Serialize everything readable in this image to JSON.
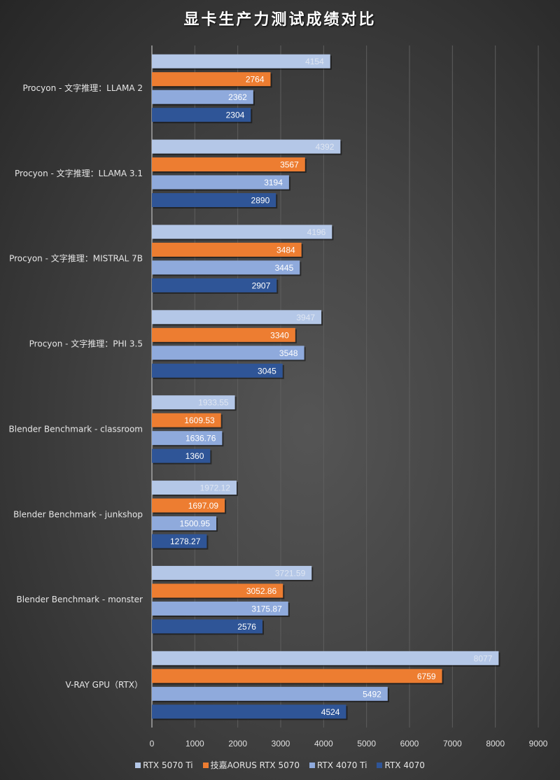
{
  "chart_data": {
    "type": "bar",
    "orientation": "horizontal",
    "title": "显卡生产力测试成绩对比",
    "xlabel": "",
    "ylabel": "",
    "xlim": [
      0,
      9000
    ],
    "x_ticks": [
      "0",
      "1000",
      "2000",
      "3000",
      "4000",
      "5000",
      "6000",
      "7000",
      "8000",
      "9000"
    ],
    "grid": "vertical",
    "legend_position": "bottom",
    "categories": [
      "Procyon - 文字推理：LLAMA 2",
      "Procyon - 文字推理：LLAMA 3.1",
      "Procyon - 文字推理：MISTRAL 7B",
      "Procyon - 文字推理：PHI 3.5",
      "Blender Benchmark - classroom",
      "Blender Benchmark - junkshop",
      "Blender Benchmark - monster",
      "V-RAY GPU（RTX）"
    ],
    "series": [
      {
        "name": "RTX 5070 Ti",
        "color": "#b4c7e7",
        "label_color": "#dfe6f2",
        "values": [
          4154,
          4392,
          4196,
          3947,
          1933.55,
          1972.12,
          3721.59,
          8077
        ],
        "labels": [
          "4154",
          "4392",
          "4196",
          "3947",
          "1933.55",
          "1972.12",
          "3721.59",
          "8077"
        ]
      },
      {
        "name": "技嘉AORUS RTX 5070",
        "color": "#ed7d31",
        "label_color": "#ffffff",
        "values": [
          2764,
          3567,
          3484,
          3340,
          1609.53,
          1697.09,
          3052.86,
          6759
        ],
        "labels": [
          "2764",
          "3567",
          "3484",
          "3340",
          "1609.53",
          "1697.09",
          "3052.86",
          "6759"
        ]
      },
      {
        "name": "RTX 4070 Ti",
        "color": "#8faadc",
        "label_color": "#ffffff",
        "values": [
          2362,
          3194,
          3445,
          3548,
          1636.76,
          1500.95,
          3175.87,
          5492
        ],
        "labels": [
          "2362",
          "3194",
          "3445",
          "3548",
          "1636.76",
          "1500.95",
          "3175.87",
          "5492"
        ]
      },
      {
        "name": "RTX 4070",
        "color": "#2f5597",
        "label_color": "#ffffff",
        "values": [
          2304,
          2890,
          2907,
          3045,
          1360,
          1278.27,
          2576,
          4524
        ],
        "labels": [
          "2304",
          "2890",
          "2907",
          "3045",
          "1360",
          "1278.27",
          "2576",
          "4524"
        ]
      }
    ]
  }
}
